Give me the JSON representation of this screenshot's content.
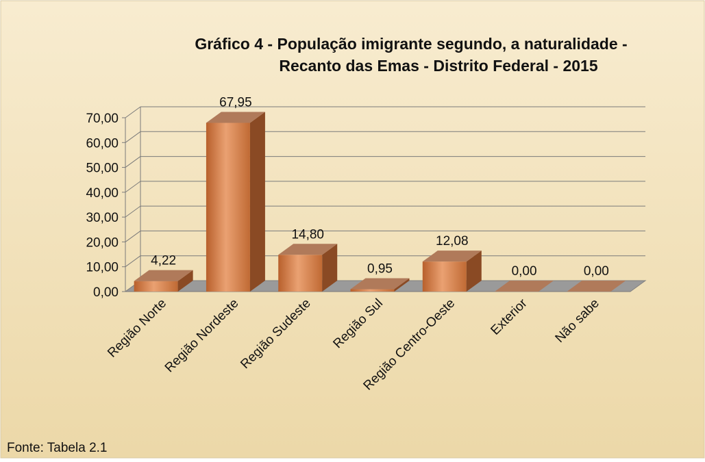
{
  "chart_data": {
    "type": "bar3d",
    "title": [
      "Gráfico 4 - População imigrante segundo, a naturalidade -",
      "Recanto das Emas - Distrito Federal - 2015"
    ],
    "categories": [
      "Região Norte",
      "Região Nordeste",
      "Região Sudeste",
      "Região Sul",
      "Região Centro-Oeste",
      "Exterior",
      "Não sabe"
    ],
    "values": [
      4.22,
      67.95,
      14.8,
      0.95,
      12.08,
      0.0,
      0.0
    ],
    "value_labels": [
      "4,22",
      "67,95",
      "14,80",
      "0,95",
      "12,08",
      "0,00",
      "0,00"
    ],
    "color": "#c8703a",
    "ylim": [
      0,
      70
    ],
    "yticks": [
      {
        "value": 0,
        "label": "0,00"
      },
      {
        "value": 10,
        "label": "10,00"
      },
      {
        "value": 20,
        "label": "20,00"
      },
      {
        "value": 30,
        "label": "30,00"
      },
      {
        "value": 40,
        "label": "40,00"
      },
      {
        "value": 50,
        "label": "50,00"
      },
      {
        "value": 60,
        "label": "60,00"
      },
      {
        "value": 70,
        "label": "70,00"
      }
    ],
    "grid": true,
    "source": "Fonte: Tabela  2.1"
  }
}
